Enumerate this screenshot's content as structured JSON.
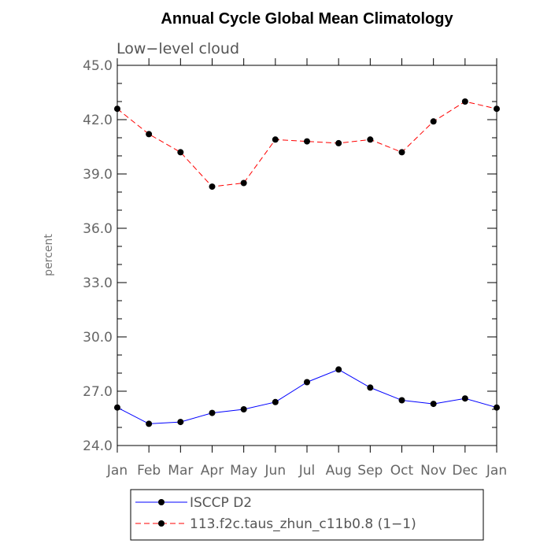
{
  "chart_data": {
    "type": "line",
    "title": "Annual Cycle Global Mean Climatology",
    "subtitle": "Low−level cloud",
    "ylabel": "percent",
    "xlabel": "",
    "categories": [
      "Jan",
      "Feb",
      "Mar",
      "Apr",
      "May",
      "Jun",
      "Jul",
      "Aug",
      "Sep",
      "Oct",
      "Nov",
      "Dec",
      "Jan"
    ],
    "ylim": [
      24.0,
      45.0
    ],
    "yticks": [
      "24.0",
      "27.0",
      "30.0",
      "33.0",
      "36.0",
      "39.0",
      "42.0",
      "45.0"
    ],
    "grid": false,
    "legend_position": "bottom",
    "series": [
      {
        "name": "ISCCP D2",
        "color": "#0000ff",
        "line_style": "solid",
        "marker": "filled-circle",
        "values": [
          26.1,
          25.2,
          25.3,
          25.8,
          26.0,
          26.4,
          27.5,
          28.2,
          27.2,
          26.5,
          26.3,
          26.6,
          26.1
        ]
      },
      {
        "name": "113.f2c.taus_zhun_c11b0.8 (1−1)",
        "color": "#ff0000",
        "line_style": "dashed",
        "marker": "filled-circle",
        "values": [
          42.6,
          41.2,
          40.2,
          38.3,
          38.5,
          40.9,
          40.8,
          40.7,
          40.9,
          40.2,
          41.9,
          43.0,
          42.6
        ]
      }
    ]
  }
}
